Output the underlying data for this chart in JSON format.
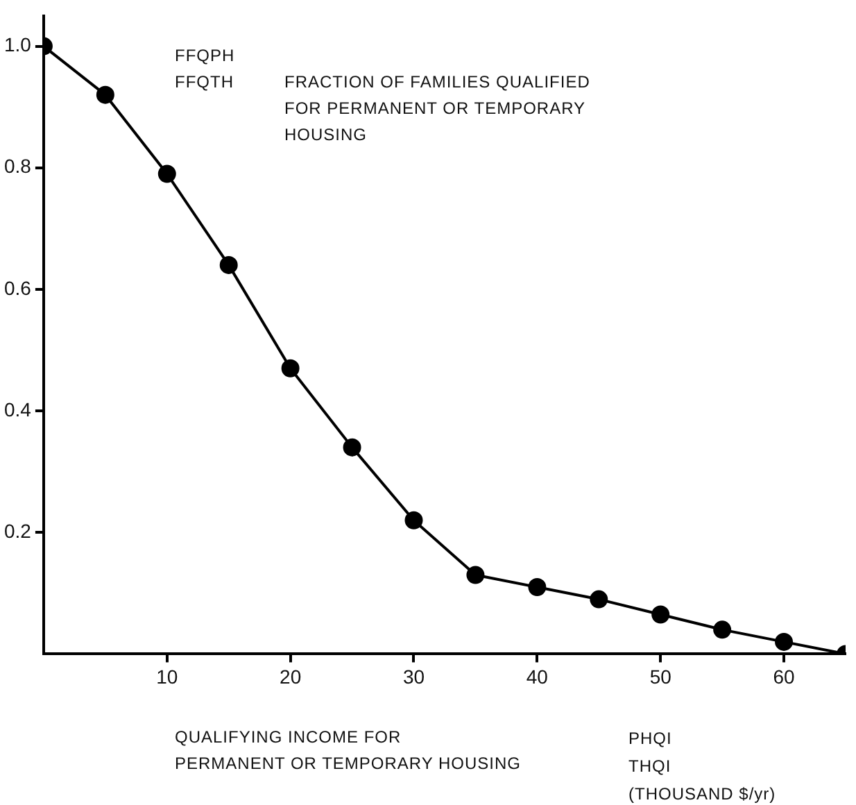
{
  "chart_data": {
    "type": "line",
    "ylabel": "FRACTION OF FAMILIES QUALIFIED\nFOR PERMANENT OR TEMPORARY\nHOUSING",
    "xlabel": "QUALIFYING INCOME FOR\nPERMANENT OR TEMPORARY HOUSING",
    "annotations": [
      "FFQPH\nFFQTH",
      "PHQI\nTHQI\n(THOUSAND $/yr)"
    ],
    "x": [
      0,
      5,
      10,
      15,
      20,
      25,
      30,
      35,
      40,
      45,
      50,
      55,
      60,
      65
    ],
    "series": [
      {
        "color": "#000000",
        "values": [
          1.0,
          0.92,
          0.79,
          0.64,
          0.47,
          0.34,
          0.22,
          0.13,
          0.11,
          0.09,
          0.065,
          0.04,
          0.02,
          0
        ]
      }
    ],
    "xlim": [
      0,
      65
    ],
    "xticks": [
      10,
      20,
      30,
      40,
      50,
      60
    ],
    "ylim": [
      0,
      1.05
    ],
    "yticks": [
      0.2,
      0.4,
      0.6,
      0.8,
      {
        "value": 1,
        "label": "1.0"
      }
    ],
    "grid": false,
    "legend": false,
    "marker": "circle",
    "line_style": "solid"
  }
}
